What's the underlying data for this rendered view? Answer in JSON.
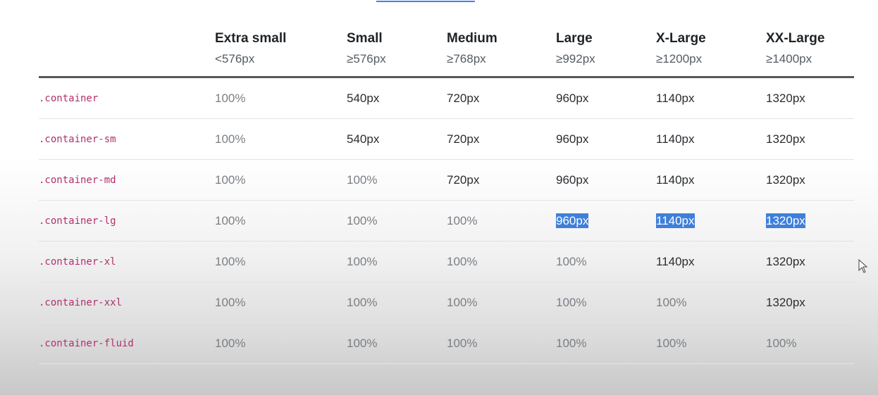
{
  "columns": [
    {
      "label": "",
      "breakpoint": ""
    },
    {
      "label": "Extra small",
      "breakpoint": "<576px"
    },
    {
      "label": "Small",
      "breakpoint": "≥576px"
    },
    {
      "label": "Medium",
      "breakpoint": "≥768px"
    },
    {
      "label": "Large",
      "breakpoint": "≥992px"
    },
    {
      "label": "X-Large",
      "breakpoint": "≥1200px"
    },
    {
      "label": "XX-Large",
      "breakpoint": "≥1400px"
    }
  ],
  "rows": [
    {
      "class": ".container",
      "values": [
        "100%",
        "540px",
        "720px",
        "960px",
        "1140px",
        "1320px"
      ]
    },
    {
      "class": ".container-sm",
      "values": [
        "100%",
        "540px",
        "720px",
        "960px",
        "1140px",
        "1320px"
      ]
    },
    {
      "class": ".container-md",
      "values": [
        "100%",
        "100%",
        "720px",
        "960px",
        "1140px",
        "1320px"
      ]
    },
    {
      "class": ".container-lg",
      "values": [
        "100%",
        "100%",
        "100%",
        "960px",
        "1140px",
        "1320px"
      ]
    },
    {
      "class": ".container-xl",
      "values": [
        "100%",
        "100%",
        "100%",
        "100%",
        "1140px",
        "1320px"
      ]
    },
    {
      "class": ".container-xxl",
      "values": [
        "100%",
        "100%",
        "100%",
        "100%",
        "100%",
        "1320px"
      ]
    },
    {
      "class": ".container-fluid",
      "values": [
        "100%",
        "100%",
        "100%",
        "100%",
        "100%",
        "100%"
      ]
    }
  ],
  "colors": {
    "class_text": "#b0306b",
    "selection": "#3f7fd9",
    "header_rule": "#55595c"
  },
  "icons": {
    "cursor": "mouse-pointer-icon"
  }
}
